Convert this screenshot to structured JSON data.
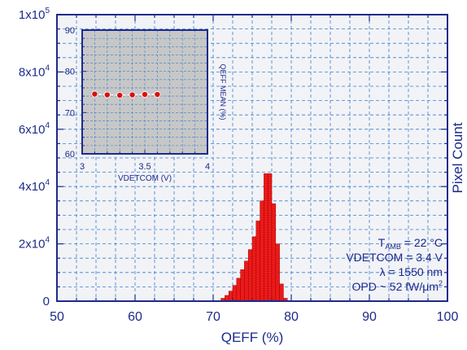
{
  "colors": {
    "axis": "#1c2a8c",
    "grid": "#3a7fd0",
    "plot_background": "#f2f3f6",
    "bars_fill": "#f01c1c",
    "bars_stroke": "#9a0000",
    "inset_background": "#c7c7c7",
    "inset_marker": "#d81010",
    "inset_line": "#ffffff"
  },
  "chart_data": [
    {
      "id": "main",
      "type": "bar",
      "xlabel": "QEFF (%)",
      "ylabel": "Pixel Count",
      "xlim": [
        50,
        100
      ],
      "ylim": [
        0,
        100000
      ],
      "xticks": [
        "50",
        "60",
        "70",
        "80",
        "90",
        "100"
      ],
      "yticks": [
        {
          "base": "0",
          "exp": ""
        },
        {
          "base": "2x10",
          "exp": "4"
        },
        {
          "base": "4x10",
          "exp": "4"
        },
        {
          "base": "6x10",
          "exp": "4"
        },
        {
          "base": "8x10",
          "exp": "4"
        },
        {
          "base": "1x10",
          "exp": "5"
        }
      ],
      "grid": true,
      "bin_width": 0.5,
      "bins": [
        {
          "x": 71.0,
          "y": 1000
        },
        {
          "x": 71.5,
          "y": 2000
        },
        {
          "x": 72.0,
          "y": 3500
        },
        {
          "x": 72.5,
          "y": 5500
        },
        {
          "x": 73.0,
          "y": 8000
        },
        {
          "x": 73.5,
          "y": 11000
        },
        {
          "x": 74.0,
          "y": 14000
        },
        {
          "x": 74.5,
          "y": 18000
        },
        {
          "x": 75.0,
          "y": 22500
        },
        {
          "x": 75.5,
          "y": 28000
        },
        {
          "x": 76.0,
          "y": 35000
        },
        {
          "x": 76.5,
          "y": 44500
        },
        {
          "x": 77.0,
          "y": 44500
        },
        {
          "x": 77.5,
          "y": 34000
        },
        {
          "x": 78.0,
          "y": 20000
        },
        {
          "x": 78.5,
          "y": 6000
        },
        {
          "x": 79.0,
          "y": 1000
        }
      ],
      "annotation": {
        "tamb_prefix": "T",
        "tamb_sub": "AMB",
        "tamb_suffix": " = 22 °C",
        "vdetcom": "VDETCOM = 3.4 V",
        "lambda": "λ = 1550 nm",
        "opd_prefix": "OPD ~ 52 fW/μm",
        "opd_exp": "2"
      }
    },
    {
      "id": "inset",
      "type": "line",
      "xlabel": "VDETCOM (V)",
      "ylabel": "QEFF MEAN (%)",
      "xlim": [
        3,
        4
      ],
      "ylim": [
        60,
        90
      ],
      "xticks": [
        "3",
        "3.5",
        "4"
      ],
      "yticks": [
        "60",
        "70",
        "80",
        "90"
      ],
      "grid": true,
      "x": [
        3.1,
        3.2,
        3.3,
        3.4,
        3.5,
        3.6
      ],
      "y": [
        74.5,
        74.3,
        74.2,
        74.3,
        74.4,
        74.4
      ]
    }
  ]
}
